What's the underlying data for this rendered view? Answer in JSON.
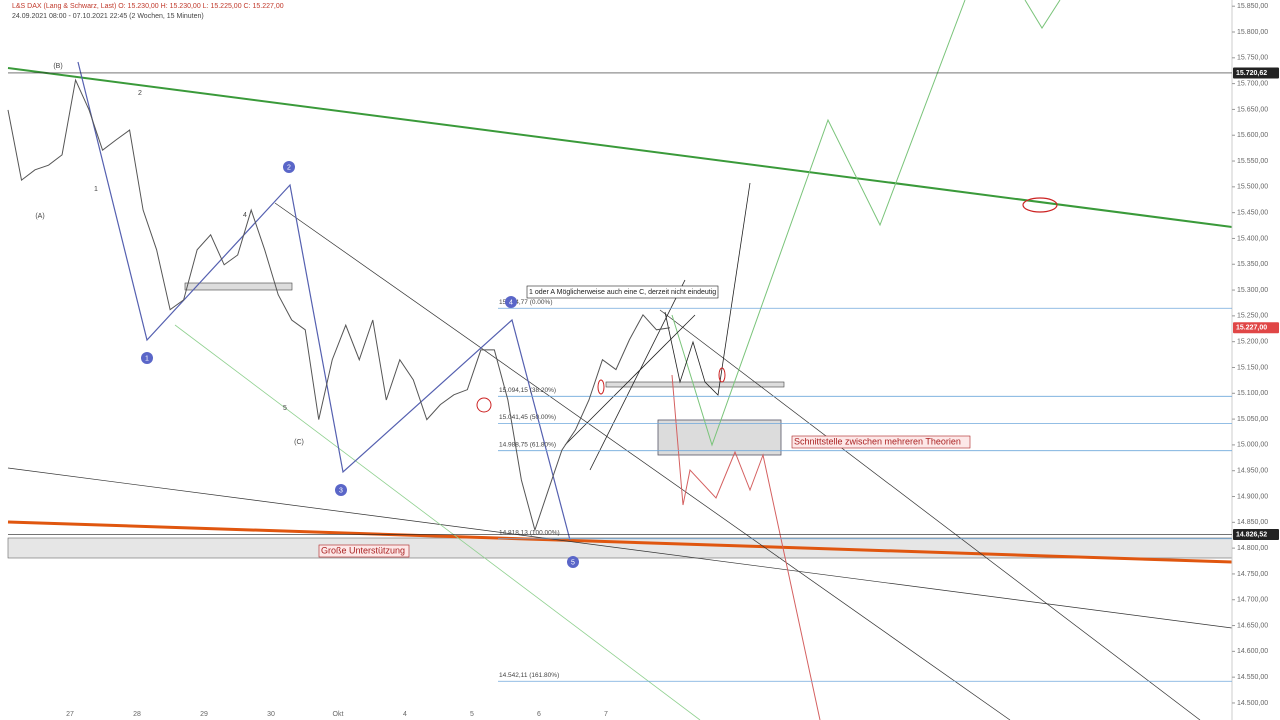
{
  "header": {
    "instrument": "L&S DAX (Lang & Schwarz, Last)  O: 15.230,00  H: 15.230,00  L: 15.225,00  C: 15.227,00",
    "range": "24.09.2021 08:00 - 07.10.2021 22:45  (2 Wochen, 15 Minuten)"
  },
  "chart_data": {
    "type": "line",
    "x_labels": [
      "27",
      "28",
      "29",
      "30",
      "Okt",
      "4",
      "5",
      "6",
      "7"
    ],
    "series": [
      {
        "color": "#555555",
        "values": [
          15649,
          15513,
          15533,
          15542,
          15562,
          15707,
          15649,
          15571,
          15591,
          15610,
          15455,
          15378,
          15262,
          15281,
          15378,
          15407,
          15349,
          15368,
          15455,
          15378,
          15291,
          15242,
          15223,
          15049,
          15165,
          15232,
          15165,
          15242,
          15087,
          15165,
          15126,
          15049,
          15078,
          15097,
          15107,
          15184,
          15184,
          15087,
          14932,
          14835,
          14913,
          14990,
          15029,
          15087,
          15165,
          15146,
          15204,
          15252,
          15223,
          15227
        ]
      }
    ],
    "ylim": [
      14467,
      15862
    ],
    "yticks": [
      {
        "value": 15850,
        "label": "15.850,00"
      },
      {
        "value": 15800,
        "label": "15.800,00"
      },
      {
        "value": 15750,
        "label": "15.750,00"
      },
      {
        "value": 15700,
        "label": "15.700,00"
      },
      {
        "value": 15650,
        "label": "15.650,00"
      },
      {
        "value": 15600,
        "label": "15.600,00"
      },
      {
        "value": 15550,
        "label": "15.550,00"
      },
      {
        "value": 15500,
        "label": "15.500,00"
      },
      {
        "value": 15450,
        "label": "15.450,00"
      },
      {
        "value": 15400,
        "label": "15.400,00"
      },
      {
        "value": 15350,
        "label": "15.350,00"
      },
      {
        "value": 15300,
        "label": "15.300,00"
      },
      {
        "value": 15250,
        "label": "15.250,00"
      },
      {
        "value": 15200,
        "label": "15.200,00"
      },
      {
        "value": 15150,
        "label": "15.150,00"
      },
      {
        "value": 15100,
        "label": "15.100,00"
      },
      {
        "value": 15050,
        "label": "15.050,00"
      },
      {
        "value": 15000,
        "label": "15.000,00"
      },
      {
        "value": 14950,
        "label": "14.950,00"
      },
      {
        "value": 14900,
        "label": "14.900,00"
      },
      {
        "value": 14850,
        "label": "14.850,00"
      },
      {
        "value": 14800,
        "label": "14.800,00"
      },
      {
        "value": 14750,
        "label": "14.750,00"
      },
      {
        "value": 14700,
        "label": "14.700,00"
      },
      {
        "value": 14650,
        "label": "14.650,00"
      },
      {
        "value": 14600,
        "label": "14.600,00"
      },
      {
        "value": 14550,
        "label": "14.550,00"
      },
      {
        "value": 14500,
        "label": "14.500,00"
      }
    ],
    "price_tags": [
      {
        "value": 15720.62,
        "label": "15.720,62",
        "color": "#222222"
      },
      {
        "value": 15227,
        "label": "15.227,00",
        "color": "#e04646"
      },
      {
        "value": 14826.52,
        "label": "14.826,52",
        "color": "#222222"
      }
    ],
    "fib_levels": [
      {
        "value": 15264.77,
        "label": "15.264,77 (0.00%)"
      },
      {
        "value": 15094.15,
        "label": "15.094,15 (38.20%)"
      },
      {
        "value": 15041.45,
        "label": "15.041,45 (50.00%)"
      },
      {
        "value": 14988.75,
        "label": "14.988,75 (61.80%)"
      },
      {
        "value": 14818.13,
        "label": "14.818,13 (100.00%)"
      },
      {
        "value": 14542.11,
        "label": "14.542,11 (161.80%)"
      }
    ],
    "annotations": [
      "1 oder A Möglicherweise auch eine C, derzeit nicht eindeutig",
      "Schnittstelle zwischen mehreren Theorien",
      "Große Unterstützung"
    ],
    "wave_labels": [
      "(B)",
      "(A)",
      "(C)",
      "2",
      "1",
      "4",
      "5"
    ],
    "wave_circles": [
      "1",
      "2",
      "3",
      "4",
      "5"
    ]
  }
}
